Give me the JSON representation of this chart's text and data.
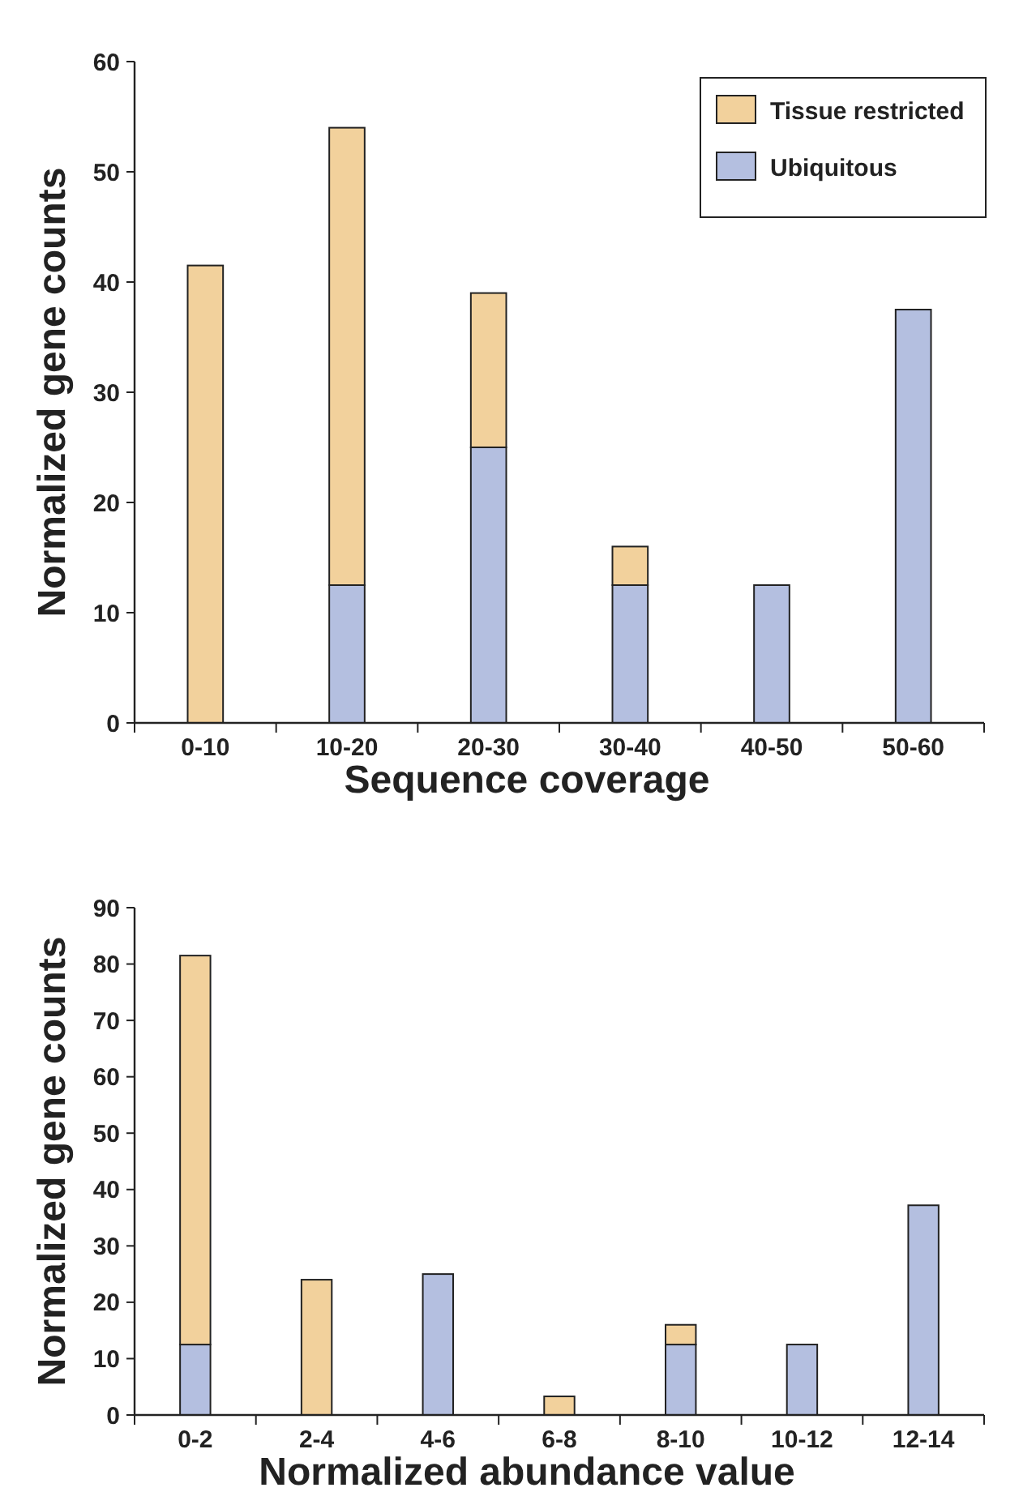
{
  "chart_data": [
    {
      "type": "bar",
      "stacked": true,
      "xlabel": "Sequence coverage",
      "ylabel": "Normalized gene counts",
      "categories": [
        "0-10",
        "10-20",
        "20-30",
        "30-40",
        "40-50",
        "50-60"
      ],
      "series": [
        {
          "name": "Ubiquitous",
          "color": "#b4bfe0",
          "values": [
            0,
            12.5,
            25,
            12.5,
            12.5,
            37.5
          ]
        },
        {
          "name": "Tissue restricted",
          "color": "#f2d19c",
          "values": [
            41.5,
            41.5,
            14,
            3.5,
            0,
            0
          ]
        }
      ],
      "ylim": [
        0,
        60
      ],
      "yticks": [
        0,
        10,
        20,
        30,
        40,
        50,
        60
      ],
      "legend": "top right",
      "grid": false
    },
    {
      "type": "bar",
      "stacked": true,
      "xlabel": "Normalized abundance value",
      "ylabel": "Normalized gene counts",
      "categories": [
        "0-2",
        "2-4",
        "4-6",
        "6-8",
        "8-10",
        "10-12",
        "12-14"
      ],
      "series": [
        {
          "color": "#b4bfe0",
          "values": [
            12.5,
            0,
            25,
            0,
            12.5,
            12.5,
            37.2
          ]
        },
        {
          "color": "#f2d19c",
          "values": [
            69,
            24,
            0,
            3.3,
            3.5,
            0,
            0
          ]
        }
      ],
      "ylim": [
        0,
        90
      ],
      "yticks": [
        0,
        10,
        20,
        30,
        40,
        50,
        60,
        70,
        80,
        90
      ],
      "legend": false,
      "grid": false
    }
  ]
}
